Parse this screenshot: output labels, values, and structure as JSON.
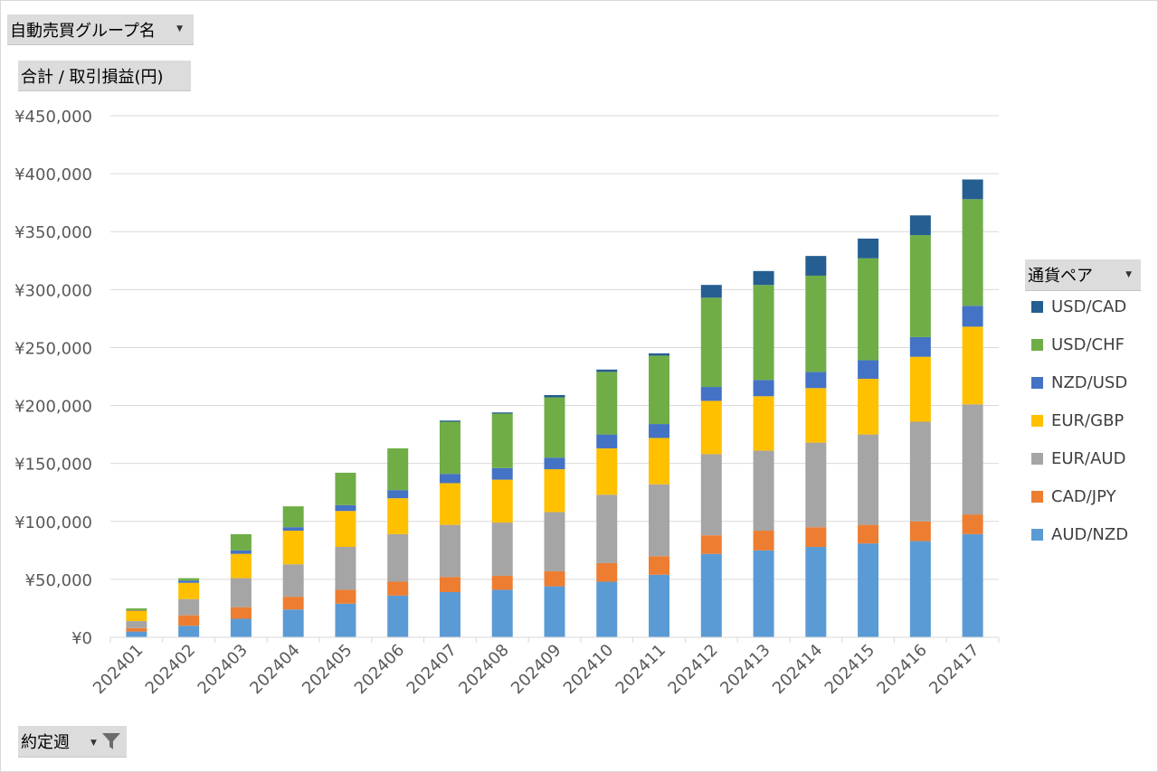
{
  "pivot": {
    "group_field": "自動売買グループ名",
    "value_field": "合計 / 取引損益(円)",
    "legend_field": "通貨ペア",
    "axis_field": "約定週"
  },
  "colors": {
    "AUD/NZD": "#5b9bd5",
    "CAD/JPY": "#ed7d31",
    "EUR/AUD": "#a5a5a5",
    "EUR/GBP": "#ffc000",
    "NZD/USD": "#4472c4",
    "USD/CHF": "#70ad47",
    "USD/CAD": "#255e91"
  },
  "chart_data": {
    "type": "bar",
    "stacked": true,
    "title": "",
    "xlabel": "",
    "ylabel": "",
    "ylim": [
      0,
      450000
    ],
    "yticks": [
      0,
      50000,
      100000,
      150000,
      200000,
      250000,
      300000,
      350000,
      400000,
      450000
    ],
    "ytick_labels": [
      "¥0",
      "¥50,000",
      "¥100,000",
      "¥150,000",
      "¥200,000",
      "¥250,000",
      "¥300,000",
      "¥350,000",
      "¥400,000",
      "¥450,000"
    ],
    "grid": true,
    "legend_position": "right",
    "categories": [
      "202401",
      "202402",
      "202403",
      "202404",
      "202405",
      "202406",
      "202407",
      "202408",
      "202409",
      "202410",
      "202411",
      "202412",
      "202413",
      "202414",
      "202415",
      "202416",
      "202417"
    ],
    "series": [
      {
        "name": "AUD/NZD",
        "values": [
          5000,
          10000,
          16000,
          24000,
          29000,
          36000,
          39000,
          41000,
          44000,
          48000,
          54000,
          72000,
          75000,
          78000,
          81000,
          83000,
          89000
        ]
      },
      {
        "name": "CAD/JPY",
        "values": [
          3000,
          9000,
          10000,
          11000,
          12000,
          12000,
          13000,
          12000,
          13000,
          16000,
          16000,
          16000,
          17000,
          17000,
          16000,
          17000,
          17000
        ]
      },
      {
        "name": "EUR/AUD",
        "values": [
          6000,
          14000,
          25000,
          28000,
          37000,
          41000,
          45000,
          46000,
          51000,
          59000,
          62000,
          70000,
          69000,
          73000,
          78000,
          86000,
          95000
        ]
      },
      {
        "name": "EUR/GBP",
        "values": [
          9000,
          14000,
          21000,
          29000,
          31000,
          31000,
          36000,
          37000,
          37000,
          40000,
          40000,
          46000,
          47000,
          47000,
          48000,
          56000,
          67000
        ]
      },
      {
        "name": "NZD/USD",
        "values": [
          500,
          2000,
          3000,
          3000,
          5000,
          7000,
          8000,
          10000,
          10000,
          12000,
          12000,
          12000,
          14000,
          14000,
          16000,
          17000,
          18000
        ]
      },
      {
        "name": "USD/CHF",
        "values": [
          1500,
          2000,
          14000,
          18000,
          28000,
          36000,
          45000,
          47000,
          52000,
          54000,
          59000,
          77000,
          82000,
          83000,
          88000,
          88000,
          92000
        ]
      },
      {
        "name": "USD/CAD",
        "values": [
          0,
          0,
          0,
          0,
          0,
          0,
          1000,
          1000,
          2000,
          2000,
          2000,
          11000,
          12000,
          17000,
          17000,
          17000,
          17000
        ]
      }
    ]
  }
}
